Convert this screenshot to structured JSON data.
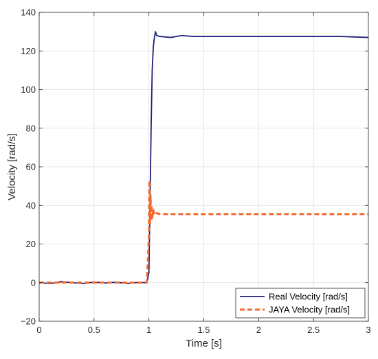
{
  "chart_data": {
    "type": "line",
    "title": "",
    "xlabel": "Time [s]",
    "ylabel": "Velocity [rad/s]",
    "xlim": [
      0,
      3
    ],
    "ylim": [
      -20,
      140
    ],
    "xticks": [
      0,
      0.5,
      1,
      1.5,
      2,
      2.5,
      3
    ],
    "xtick_labels": [
      "0",
      "0.5",
      "1",
      "1.5",
      "2",
      "2.5",
      "3"
    ],
    "yticks": [
      -20,
      0,
      20,
      40,
      60,
      80,
      100,
      120,
      140
    ],
    "ytick_labels": [
      "−20",
      "0",
      "20",
      "40",
      "60",
      "80",
      "100",
      "120",
      "140"
    ],
    "grid": true,
    "legend_position": "bottom-right",
    "series": [
      {
        "name": "Real Velocity [rad/s]",
        "color": "#1f1f7a",
        "style": "solid",
        "x": [
          0,
          0.1,
          0.2,
          0.3,
          0.4,
          0.5,
          0.6,
          0.7,
          0.8,
          0.9,
          0.98,
          1.0,
          1.01,
          1.02,
          1.03,
          1.04,
          1.05,
          1.06,
          1.07,
          1.1,
          1.2,
          1.3,
          1.4,
          1.5,
          1.75,
          2.0,
          2.25,
          2.5,
          2.75,
          3.0
        ],
        "y": [
          0,
          -0.5,
          0.5,
          0,
          -0.5,
          0.3,
          -0.2,
          0.2,
          -0.4,
          0.1,
          0,
          5,
          40,
          80,
          110,
          122,
          127,
          130,
          128,
          127.5,
          127,
          128,
          127.5,
          127.5,
          127.5,
          127.5,
          127.5,
          127.5,
          127.5,
          127
        ]
      },
      {
        "name": "JAYA Velocity [rad/s]",
        "color": "#f26a2e",
        "style": "dashed",
        "x": [
          0,
          0.5,
          0.98,
          0.99,
          1.0,
          1.005,
          1.01,
          1.015,
          1.02,
          1.025,
          1.03,
          1.04,
          1.05,
          1.07,
          1.1,
          1.5,
          2.0,
          2.5,
          3.0
        ],
        "y": [
          0,
          0,
          0,
          10,
          25,
          53,
          30,
          45,
          32,
          40,
          33,
          38,
          35,
          36,
          35.5,
          35.5,
          35.5,
          35.5,
          35.5
        ]
      }
    ]
  }
}
